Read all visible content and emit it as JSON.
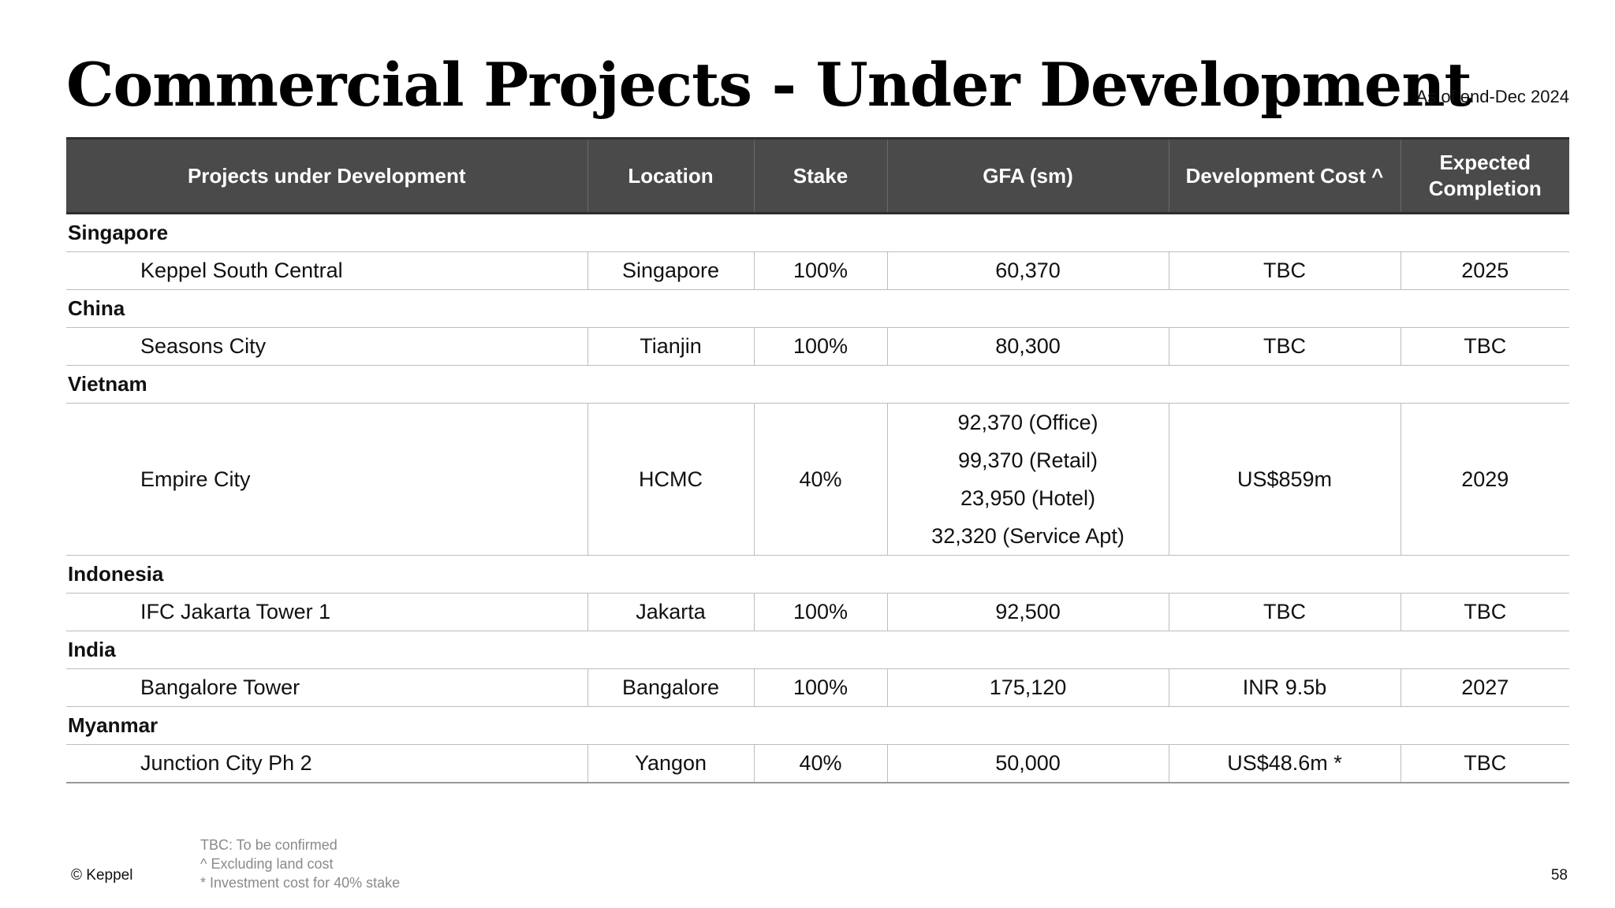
{
  "header": {
    "title": "Commercial Projects - Under Development",
    "as_of": "As of end-Dec 2024"
  },
  "table": {
    "columns": [
      "Projects under Development",
      "Location",
      "Stake",
      "GFA (sm)",
      "Development Cost ^",
      "Expected Completion"
    ],
    "groups": [
      {
        "region": "Singapore",
        "projects": [
          {
            "name": "Keppel South Central",
            "location": "Singapore",
            "stake": "100%",
            "gfa": [
              "60,370"
            ],
            "cost": "TBC",
            "completion": "2025"
          }
        ]
      },
      {
        "region": "China",
        "projects": [
          {
            "name": "Seasons City",
            "location": "Tianjin",
            "stake": "100%",
            "gfa": [
              "80,300"
            ],
            "cost": "TBC",
            "completion": "TBC"
          }
        ]
      },
      {
        "region": "Vietnam",
        "projects": [
          {
            "name": "Empire City",
            "location": "HCMC",
            "stake": "40%",
            "gfa": [
              "92,370 (Office)",
              "99,370 (Retail)",
              "23,950 (Hotel)",
              "32,320 (Service Apt)"
            ],
            "cost": "US$859m",
            "completion": "2029"
          }
        ]
      },
      {
        "region": "Indonesia",
        "projects": [
          {
            "name": "IFC Jakarta Tower 1",
            "location": "Jakarta",
            "stake": "100%",
            "gfa": [
              "92,500"
            ],
            "cost": "TBC",
            "completion": "TBC"
          }
        ]
      },
      {
        "region": "India",
        "projects": [
          {
            "name": "Bangalore Tower",
            "location": "Bangalore",
            "stake": "100%",
            "gfa": [
              "175,120"
            ],
            "cost": "INR 9.5b",
            "completion": "2027"
          }
        ]
      },
      {
        "region": "Myanmar",
        "projects": [
          {
            "name": "Junction City Ph 2",
            "location": "Yangon",
            "stake": "40%",
            "gfa": [
              "50,000"
            ],
            "cost": "US$48.6m *",
            "completion": "TBC"
          }
        ]
      }
    ]
  },
  "footer": {
    "notes": [
      "TBC: To be confirmed",
      "^ Excluding land cost",
      "* Investment cost for 40% stake"
    ],
    "copyright": "© Keppel",
    "page_number": "58"
  }
}
